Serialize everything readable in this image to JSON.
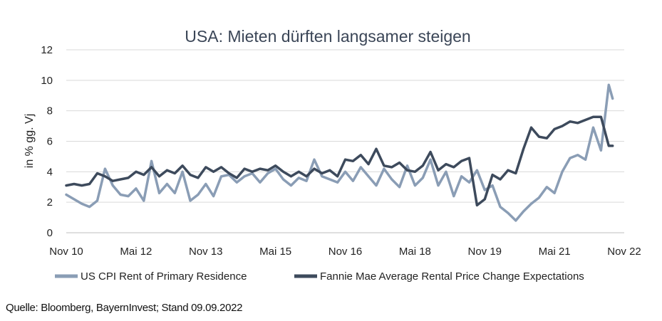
{
  "chart_data": {
    "type": "line",
    "title": "USA: Mieten dürften langsamer steigen",
    "xlabel": "",
    "ylabel": "in % gg. Vj",
    "ylim": [
      0,
      12
    ],
    "yticks": [
      "0",
      "2",
      "4",
      "6",
      "8",
      "10",
      "12"
    ],
    "xlim": [
      "2010-11",
      "2022-11"
    ],
    "xticks": [
      "Nov 10",
      "Mai 12",
      "Nov 13",
      "Mai 15",
      "Nov 16",
      "Mai 18",
      "Nov 19",
      "Mai 21",
      "Nov 22"
    ],
    "grid": "horizontal",
    "legend": "bottom",
    "series": [
      {
        "name": "US CPI Rent of Primary Residence",
        "color": "#8a9db5",
        "x": [
          "2010-11",
          "2011-01",
          "2011-03",
          "2011-05",
          "2011-07",
          "2011-09",
          "2011-11",
          "2012-01",
          "2012-03",
          "2012-05",
          "2012-07",
          "2012-09",
          "2012-11",
          "2013-01",
          "2013-03",
          "2013-05",
          "2013-07",
          "2013-09",
          "2013-11",
          "2014-01",
          "2014-03",
          "2014-05",
          "2014-07",
          "2014-09",
          "2014-11",
          "2015-01",
          "2015-03",
          "2015-05",
          "2015-07",
          "2015-09",
          "2015-11",
          "2016-01",
          "2016-03",
          "2016-05",
          "2016-07",
          "2016-09",
          "2016-11",
          "2017-01",
          "2017-03",
          "2017-05",
          "2017-07",
          "2017-09",
          "2017-11",
          "2018-01",
          "2018-03",
          "2018-05",
          "2018-07",
          "2018-09",
          "2018-11",
          "2019-01",
          "2019-03",
          "2019-05",
          "2019-07",
          "2019-09",
          "2019-11",
          "2020-01",
          "2020-03",
          "2020-05",
          "2020-07",
          "2020-09",
          "2020-11",
          "2021-01",
          "2021-03",
          "2021-05",
          "2021-07",
          "2021-09",
          "2021-11",
          "2022-01",
          "2022-03",
          "2022-05",
          "2022-07",
          "2022-08"
        ],
        "values": [
          2.5,
          2.2,
          1.9,
          1.7,
          2.1,
          4.2,
          3.1,
          2.5,
          2.4,
          2.9,
          2.1,
          4.7,
          2.6,
          3.2,
          2.6,
          4.0,
          2.1,
          2.5,
          3.2,
          2.4,
          3.7,
          3.8,
          3.3,
          3.7,
          3.9,
          3.3,
          3.9,
          4.2,
          3.5,
          3.1,
          3.6,
          3.4,
          4.8,
          3.7,
          3.5,
          3.3,
          4.0,
          3.4,
          4.3,
          3.7,
          3.1,
          4.2,
          3.5,
          3.0,
          4.4,
          3.1,
          3.6,
          4.8,
          3.1,
          4.0,
          2.4,
          3.7,
          3.3,
          4.1,
          2.8,
          3.1,
          1.7,
          1.3,
          0.8,
          1.4,
          1.9,
          2.3,
          3.0,
          2.6,
          4.0,
          4.9,
          5.1,
          4.8,
          6.9,
          5.4,
          9.7,
          8.8
        ]
      },
      {
        "name": "Fannie Mae Average Rental Price Change Expectations",
        "color": "#3d4a5c",
        "x": [
          "2010-11",
          "2011-01",
          "2011-03",
          "2011-05",
          "2011-07",
          "2011-09",
          "2011-11",
          "2012-01",
          "2012-03",
          "2012-05",
          "2012-07",
          "2012-09",
          "2012-11",
          "2013-01",
          "2013-03",
          "2013-05",
          "2013-07",
          "2013-09",
          "2013-11",
          "2014-01",
          "2014-03",
          "2014-05",
          "2014-07",
          "2014-09",
          "2014-11",
          "2015-01",
          "2015-03",
          "2015-05",
          "2015-07",
          "2015-09",
          "2015-11",
          "2016-01",
          "2016-03",
          "2016-05",
          "2016-07",
          "2016-09",
          "2016-11",
          "2017-01",
          "2017-03",
          "2017-05",
          "2017-07",
          "2017-09",
          "2017-11",
          "2018-01",
          "2018-03",
          "2018-05",
          "2018-07",
          "2018-09",
          "2018-11",
          "2019-01",
          "2019-03",
          "2019-05",
          "2019-07",
          "2019-09",
          "2019-11",
          "2020-01",
          "2020-03",
          "2020-05",
          "2020-07",
          "2020-09",
          "2020-11",
          "2021-01",
          "2021-03",
          "2021-05",
          "2021-07",
          "2021-09",
          "2021-11",
          "2022-01",
          "2022-03",
          "2022-05",
          "2022-07",
          "2022-08"
        ],
        "values": [
          3.1,
          3.2,
          3.1,
          3.2,
          3.9,
          3.7,
          3.4,
          3.5,
          3.6,
          4.0,
          3.8,
          4.3,
          3.7,
          4.1,
          3.9,
          4.4,
          3.8,
          3.6,
          4.3,
          4.0,
          4.3,
          3.9,
          3.6,
          4.2,
          4.0,
          4.2,
          4.1,
          4.4,
          4.0,
          3.7,
          4.0,
          3.7,
          4.2,
          3.9,
          4.1,
          3.7,
          4.8,
          4.7,
          5.1,
          4.5,
          5.5,
          4.4,
          4.3,
          4.6,
          4.1,
          4.0,
          4.4,
          5.3,
          4.1,
          4.5,
          4.3,
          4.7,
          4.9,
          1.8,
          2.2,
          3.8,
          3.5,
          4.1,
          3.9,
          5.5,
          6.9,
          6.3,
          6.2,
          6.8,
          7.0,
          7.3,
          7.2,
          7.4,
          7.6,
          7.6,
          5.7,
          5.7
        ]
      }
    ]
  },
  "footer": {
    "source": "Quelle: Bloomberg, BayernInvest; Stand 09.09.2022"
  }
}
